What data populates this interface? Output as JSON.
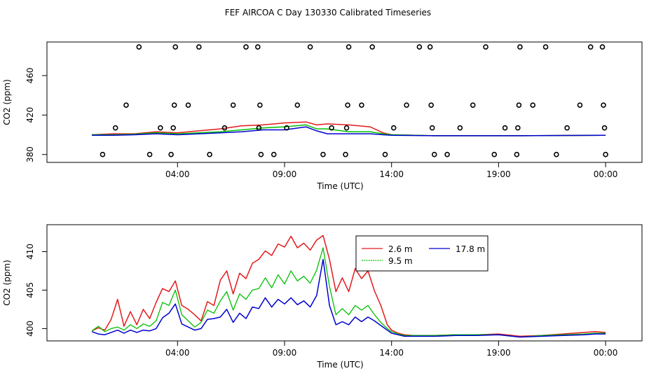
{
  "page_title": "FEF AIRCOA C  Day 130330  Calibrated Timeseries",
  "colors": {
    "red": "#e41a1c",
    "green": "#00c000",
    "blue": "#0000d0",
    "black": "#000000"
  },
  "chart_data": [
    {
      "type": "scatter+line",
      "xlabel": "Time (UTC)",
      "ylabel": "CO2 (ppm)",
      "x_tick_labels": [
        "04:00",
        "09:00",
        "14:00",
        "19:00",
        "00:00"
      ],
      "x_tick_hours": [
        4,
        9,
        14,
        19,
        24
      ],
      "x_range_hours": [
        -2.1,
        25.7
      ],
      "y_ticks": [
        380,
        420,
        460
      ],
      "y_tick_labels": [
        "380",
        "420",
        "460"
      ],
      "ylim": [
        372,
        494
      ],
      "calibration_points": [
        {
          "x": 0.5,
          "y": 380
        },
        {
          "x": 1.1,
          "y": 407
        },
        {
          "x": 1.6,
          "y": 430
        },
        {
          "x": 2.2,
          "y": 489
        },
        {
          "x": 2.7,
          "y": 380
        },
        {
          "x": 3.2,
          "y": 407
        },
        {
          "x": 3.7,
          "y": 380
        },
        {
          "x": 3.8,
          "y": 407
        },
        {
          "x": 3.85,
          "y": 430
        },
        {
          "x": 3.9,
          "y": 489
        },
        {
          "x": 4.5,
          "y": 430
        },
        {
          "x": 5.0,
          "y": 489
        },
        {
          "x": 5.5,
          "y": 380
        },
        {
          "x": 6.2,
          "y": 407
        },
        {
          "x": 6.6,
          "y": 430
        },
        {
          "x": 7.2,
          "y": 489
        },
        {
          "x": 7.75,
          "y": 489
        },
        {
          "x": 7.8,
          "y": 407
        },
        {
          "x": 7.85,
          "y": 430
        },
        {
          "x": 7.9,
          "y": 380
        },
        {
          "x": 8.5,
          "y": 380
        },
        {
          "x": 9.1,
          "y": 407
        },
        {
          "x": 9.6,
          "y": 430
        },
        {
          "x": 10.2,
          "y": 489
        },
        {
          "x": 10.8,
          "y": 380
        },
        {
          "x": 11.2,
          "y": 407
        },
        {
          "x": 11.85,
          "y": 380
        },
        {
          "x": 11.9,
          "y": 407
        },
        {
          "x": 11.95,
          "y": 430
        },
        {
          "x": 12.0,
          "y": 489
        },
        {
          "x": 12.6,
          "y": 430
        },
        {
          "x": 13.1,
          "y": 489
        },
        {
          "x": 13.7,
          "y": 380
        },
        {
          "x": 14.1,
          "y": 407
        },
        {
          "x": 14.7,
          "y": 430
        },
        {
          "x": 15.3,
          "y": 489
        },
        {
          "x": 15.8,
          "y": 489
        },
        {
          "x": 15.85,
          "y": 430
        },
        {
          "x": 15.9,
          "y": 407
        },
        {
          "x": 16.0,
          "y": 380
        },
        {
          "x": 16.6,
          "y": 380
        },
        {
          "x": 17.2,
          "y": 407
        },
        {
          "x": 17.8,
          "y": 430
        },
        {
          "x": 18.4,
          "y": 489
        },
        {
          "x": 18.8,
          "y": 380
        },
        {
          "x": 19.3,
          "y": 407
        },
        {
          "x": 19.85,
          "y": 380
        },
        {
          "x": 19.9,
          "y": 407
        },
        {
          "x": 19.95,
          "y": 430
        },
        {
          "x": 20.0,
          "y": 489
        },
        {
          "x": 20.6,
          "y": 430
        },
        {
          "x": 21.2,
          "y": 489
        },
        {
          "x": 21.7,
          "y": 380
        },
        {
          "x": 22.2,
          "y": 407
        },
        {
          "x": 22.8,
          "y": 430
        },
        {
          "x": 23.3,
          "y": 489
        },
        {
          "x": 23.85,
          "y": 489
        },
        {
          "x": 23.9,
          "y": 430
        },
        {
          "x": 23.95,
          "y": 407
        },
        {
          "x": 24.0,
          "y": 380
        }
      ],
      "series": [
        {
          "color_key": "red",
          "x": [
            0,
            1,
            2,
            3,
            4,
            5,
            6,
            7,
            8,
            9,
            10,
            10.5,
            11,
            12,
            13,
            13.6,
            14,
            16,
            20,
            24
          ],
          "y": [
            400,
            401,
            401,
            403,
            402,
            404,
            406,
            409,
            410,
            412,
            413,
            410,
            411,
            410,
            408,
            402,
            400,
            399,
            399,
            399.5
          ]
        },
        {
          "color_key": "green",
          "x": [
            0,
            1,
            2,
            3,
            4,
            5,
            6,
            7,
            8,
            9,
            10,
            10.5,
            11,
            12,
            13,
            13.6,
            14,
            16,
            20,
            24
          ],
          "y": [
            400,
            400,
            400.5,
            402,
            401,
            402,
            403,
            405,
            407,
            408,
            410,
            406,
            406,
            403,
            403,
            401,
            400,
            399,
            399,
            399.5
          ]
        },
        {
          "color_key": "blue",
          "x": [
            0,
            1,
            2,
            3,
            4,
            5,
            6,
            7,
            8,
            9,
            10,
            10.5,
            11,
            12,
            13,
            13.6,
            14,
            16,
            20,
            24
          ],
          "y": [
            399.5,
            399.5,
            400,
            401,
            400,
            401,
            402,
            403,
            405,
            405,
            408,
            404,
            401,
            401,
            401,
            400,
            399.5,
            399,
            399,
            399.5
          ]
        }
      ]
    },
    {
      "type": "line",
      "xlabel": "Time (UTC)",
      "ylabel": "CO2 (ppm)",
      "x_tick_labels": [
        "04:00",
        "09:00",
        "14:00",
        "19:00",
        "00:00"
      ],
      "x_tick_hours": [
        4,
        9,
        14,
        19,
        24
      ],
      "x_range_hours": [
        -2.1,
        25.7
      ],
      "y_ticks": [
        400,
        405,
        410
      ],
      "y_tick_labels": [
        "400",
        "405",
        "410"
      ],
      "ylim": [
        398.4,
        413.5
      ],
      "legend_position": "top-right",
      "series": [
        {
          "name": "2.6 m",
          "color_key": "red",
          "x": [
            0,
            0.3,
            0.6,
            0.9,
            1.2,
            1.5,
            1.8,
            2.1,
            2.4,
            2.7,
            3.0,
            3.3,
            3.6,
            3.9,
            4.2,
            4.5,
            4.8,
            5.1,
            5.4,
            5.7,
            6.0,
            6.3,
            6.6,
            6.9,
            7.2,
            7.5,
            7.8,
            8.1,
            8.4,
            8.7,
            9.0,
            9.3,
            9.6,
            9.9,
            10.2,
            10.5,
            10.8,
            11.1,
            11.4,
            11.7,
            12.0,
            12.3,
            12.6,
            12.9,
            13.2,
            13.5,
            13.8,
            14.0,
            14.3,
            14.6,
            15.0,
            16,
            17,
            18,
            19,
            20,
            21,
            22,
            23,
            23.5,
            24
          ],
          "y": [
            399.7,
            400.1,
            399.8,
            401.2,
            403.8,
            400.3,
            402.2,
            400.5,
            402.5,
            401.3,
            403.4,
            405.2,
            404.8,
            406.2,
            403.0,
            402.5,
            401.8,
            401.0,
            403.5,
            403.0,
            406.3,
            407.5,
            404.5,
            407.2,
            406.5,
            408.5,
            409.0,
            410.1,
            409.5,
            411.0,
            410.6,
            412.0,
            410.5,
            411.1,
            410.2,
            411.5,
            412.1,
            409.0,
            404.8,
            406.6,
            404.8,
            407.8,
            406.5,
            407.5,
            404.9,
            403.0,
            400.5,
            399.8,
            399.4,
            399.2,
            399.1,
            399.1,
            399.2,
            399.2,
            399.3,
            399.0,
            399.1,
            399.3,
            399.5,
            399.6,
            399.5
          ]
        },
        {
          "name": "9.5 m",
          "color_key": "green",
          "x": [
            0,
            0.3,
            0.6,
            0.9,
            1.2,
            1.5,
            1.8,
            2.1,
            2.4,
            2.7,
            3.0,
            3.3,
            3.6,
            3.9,
            4.2,
            4.5,
            4.8,
            5.1,
            5.4,
            5.7,
            6.0,
            6.3,
            6.6,
            6.9,
            7.2,
            7.5,
            7.8,
            8.1,
            8.4,
            8.7,
            9.0,
            9.3,
            9.6,
            9.9,
            10.2,
            10.5,
            10.8,
            11.1,
            11.4,
            11.7,
            12.0,
            12.3,
            12.6,
            12.9,
            13.2,
            13.5,
            13.8,
            14.0,
            14.3,
            14.6,
            15.0,
            16,
            17,
            18,
            19,
            20,
            21,
            22,
            23,
            23.5,
            24
          ],
          "y": [
            399.7,
            400.3,
            399.6,
            400.0,
            400.2,
            399.8,
            400.5,
            400.0,
            400.6,
            400.3,
            401.0,
            403.4,
            403.0,
            405.0,
            401.8,
            401.0,
            400.2,
            400.8,
            402.4,
            402.0,
            403.6,
            404.8,
            402.4,
            404.5,
            403.8,
            405.0,
            405.2,
            406.6,
            405.3,
            407.0,
            405.8,
            407.5,
            406.2,
            406.8,
            405.9,
            407.6,
            410.5,
            405.5,
            401.8,
            402.6,
            401.8,
            403.0,
            402.4,
            403.0,
            401.8,
            400.8,
            400.0,
            399.6,
            399.3,
            399.1,
            399.1,
            399.1,
            399.2,
            399.2,
            399.2,
            398.9,
            399.1,
            399.2,
            399.3,
            399.4,
            399.4
          ]
        },
        {
          "name": "17.8 m",
          "color_key": "blue",
          "x": [
            0,
            0.3,
            0.6,
            0.9,
            1.2,
            1.5,
            1.8,
            2.1,
            2.4,
            2.7,
            3.0,
            3.3,
            3.6,
            3.9,
            4.2,
            4.5,
            4.8,
            5.1,
            5.4,
            5.7,
            6.0,
            6.3,
            6.6,
            6.9,
            7.2,
            7.5,
            7.8,
            8.1,
            8.4,
            8.7,
            9.0,
            9.3,
            9.6,
            9.9,
            10.2,
            10.5,
            10.8,
            11.1,
            11.4,
            11.7,
            12.0,
            12.3,
            12.6,
            12.9,
            13.2,
            13.5,
            13.8,
            14.0,
            14.3,
            14.6,
            15.0,
            16,
            17,
            18,
            19,
            20,
            21,
            22,
            23,
            23.5,
            24
          ],
          "y": [
            399.6,
            399.3,
            399.2,
            399.5,
            399.8,
            399.4,
            399.8,
            399.5,
            399.8,
            399.7,
            400.0,
            401.4,
            402.0,
            403.2,
            400.6,
            400.2,
            399.8,
            400.0,
            401.2,
            401.3,
            401.5,
            402.5,
            400.8,
            402.0,
            401.3,
            402.8,
            402.6,
            404.0,
            402.8,
            403.8,
            403.2,
            404.0,
            403.1,
            403.6,
            402.8,
            404.3,
            409.0,
            403.0,
            400.5,
            400.9,
            400.5,
            401.5,
            400.9,
            401.5,
            401.0,
            400.4,
            399.8,
            399.4,
            399.2,
            399.0,
            399.0,
            399.0,
            399.1,
            399.1,
            399.2,
            398.9,
            399.0,
            399.1,
            399.2,
            399.3,
            399.3
          ]
        }
      ]
    }
  ]
}
